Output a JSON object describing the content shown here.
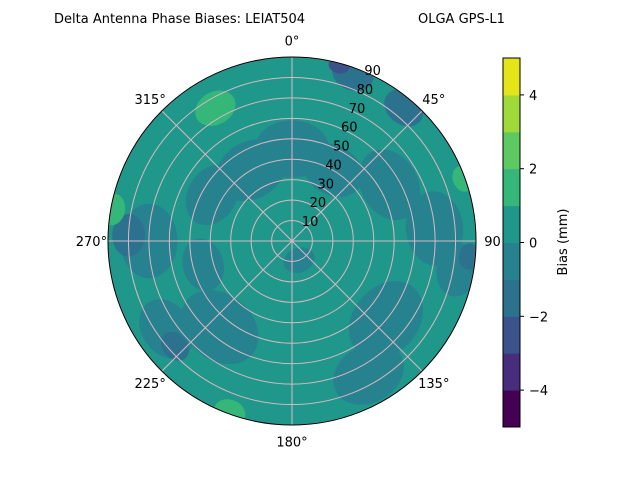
{
  "chart_data": {
    "type": "heatmap",
    "projection": "polar",
    "title_left": "Delta Antenna Phase Biases: LEIAT504",
    "title_right": "OLGA GPS-L1",
    "angular_ticks": [
      "0°",
      "45°",
      "90",
      "135°",
      "180°",
      "225°",
      "270°",
      "315°"
    ],
    "angular_tick_values": [
      0,
      45,
      90,
      135,
      180,
      225,
      270,
      315
    ],
    "radial_ticks": [
      "10",
      "20",
      "30",
      "40",
      "50",
      "60",
      "70",
      "80",
      "90"
    ],
    "radial_tick_values": [
      10,
      20,
      30,
      40,
      50,
      60,
      70,
      80,
      90
    ],
    "rlim": [
      0,
      90
    ],
    "direction": "clockwise",
    "zero_location": "top",
    "grid": true,
    "colorbar": {
      "label": "Bias (mm)",
      "range": [
        -5,
        5
      ],
      "levels": [
        -5,
        -4,
        -3,
        -2,
        -1,
        0,
        1,
        2,
        3,
        4,
        5
      ],
      "ticks": [
        "−4",
        "−2",
        "0",
        "2",
        "4"
      ],
      "tick_values": [
        -4,
        -2,
        0,
        2,
        4
      ],
      "colormap": "viridis",
      "colors": [
        "#440154",
        "#472d7b",
        "#3b528b",
        "#2c728e",
        "#26828e",
        "#1f988b",
        "#35b779",
        "#5ec962",
        "#a0da39",
        "#e5e419"
      ]
    },
    "background_value": 0.5,
    "regions": [
      {
        "az": 0,
        "zen": 45,
        "size": 14,
        "value": -0.5
      },
      {
        "az": 330,
        "zen": 40,
        "size": 14,
        "value": -0.5
      },
      {
        "az": 300,
        "zen": 45,
        "size": 12,
        "value": -0.5
      },
      {
        "az": 30,
        "zen": 40,
        "size": 12,
        "value": -0.5
      },
      {
        "az": 60,
        "zen": 55,
        "size": 14,
        "value": -0.5
      },
      {
        "az": 85,
        "zen": 70,
        "size": 14,
        "value": -0.5
      },
      {
        "az": 100,
        "zen": 82,
        "size": 10,
        "value": -0.5
      },
      {
        "az": 130,
        "zen": 60,
        "size": 16,
        "value": -0.5
      },
      {
        "az": 150,
        "zen": 75,
        "size": 14,
        "value": -0.5
      },
      {
        "az": 220,
        "zen": 55,
        "size": 16,
        "value": -0.5
      },
      {
        "az": 235,
        "zen": 75,
        "size": 12,
        "value": -0.5
      },
      {
        "az": 270,
        "zen": 70,
        "size": 14,
        "value": -0.5
      },
      {
        "az": 255,
        "zen": 45,
        "size": 10,
        "value": -0.5
      },
      {
        "az": 160,
        "zen": 10,
        "size": 6,
        "value": -0.5
      },
      {
        "az": 20,
        "zen": 87,
        "size": 8,
        "value": -1.5
      },
      {
        "az": 40,
        "zen": 85,
        "size": 8,
        "value": -1.5
      },
      {
        "az": 272,
        "zen": 80,
        "size": 8,
        "value": -1.5
      },
      {
        "az": 228,
        "zen": 77,
        "size": 6,
        "value": -1.5
      },
      {
        "az": 95,
        "zen": 87,
        "size": 5,
        "value": -1.5
      },
      {
        "az": 15,
        "zen": 89,
        "size": 4,
        "value": -2.5
      },
      {
        "az": 330,
        "zen": 75,
        "size": 8,
        "value": 1.5
      },
      {
        "az": 280,
        "zen": 89,
        "size": 6,
        "value": 1.5
      },
      {
        "az": 200,
        "zen": 89,
        "size": 6,
        "value": 1.5
      },
      {
        "az": 70,
        "zen": 89,
        "size": 5,
        "value": 1.5
      }
    ]
  }
}
